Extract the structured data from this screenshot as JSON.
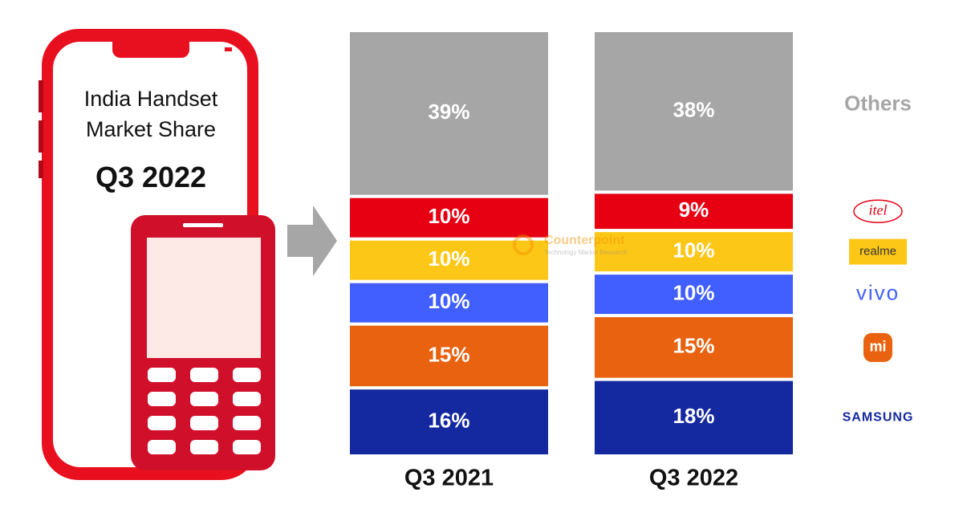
{
  "chart_data": {
    "type": "stacked_bar",
    "title": "India Handset Market Share",
    "subtitle": "Q3 2022",
    "watermark": "Counterpoint",
    "watermark_tagline": "Technology Market Research",
    "categories": [
      "Q3 2021",
      "Q3 2022"
    ],
    "series": [
      {
        "name": "SAMSUNG",
        "color": "#1428a0",
        "values": [
          16,
          18
        ],
        "value_labels": [
          "16%",
          "18%"
        ]
      },
      {
        "name": "mi",
        "color": "#e8620f",
        "values": [
          15,
          15
        ],
        "value_labels": [
          "15%",
          "15%"
        ]
      },
      {
        "name": "vivo",
        "color": "#415fff",
        "values": [
          10,
          10
        ],
        "value_labels": [
          "10%",
          "10%"
        ]
      },
      {
        "name": "realme",
        "color": "#fdc718",
        "values": [
          10,
          10
        ],
        "value_labels": [
          "10%",
          "10%"
        ]
      },
      {
        "name": "itel",
        "color": "#e60012",
        "values": [
          10,
          9
        ],
        "value_labels": [
          "10%",
          "9%"
        ]
      },
      {
        "name": "Others",
        "color": "#a6a6a6",
        "values": [
          39,
          38
        ],
        "value_labels": [
          "39%",
          "38%"
        ]
      }
    ],
    "legend": "right"
  }
}
